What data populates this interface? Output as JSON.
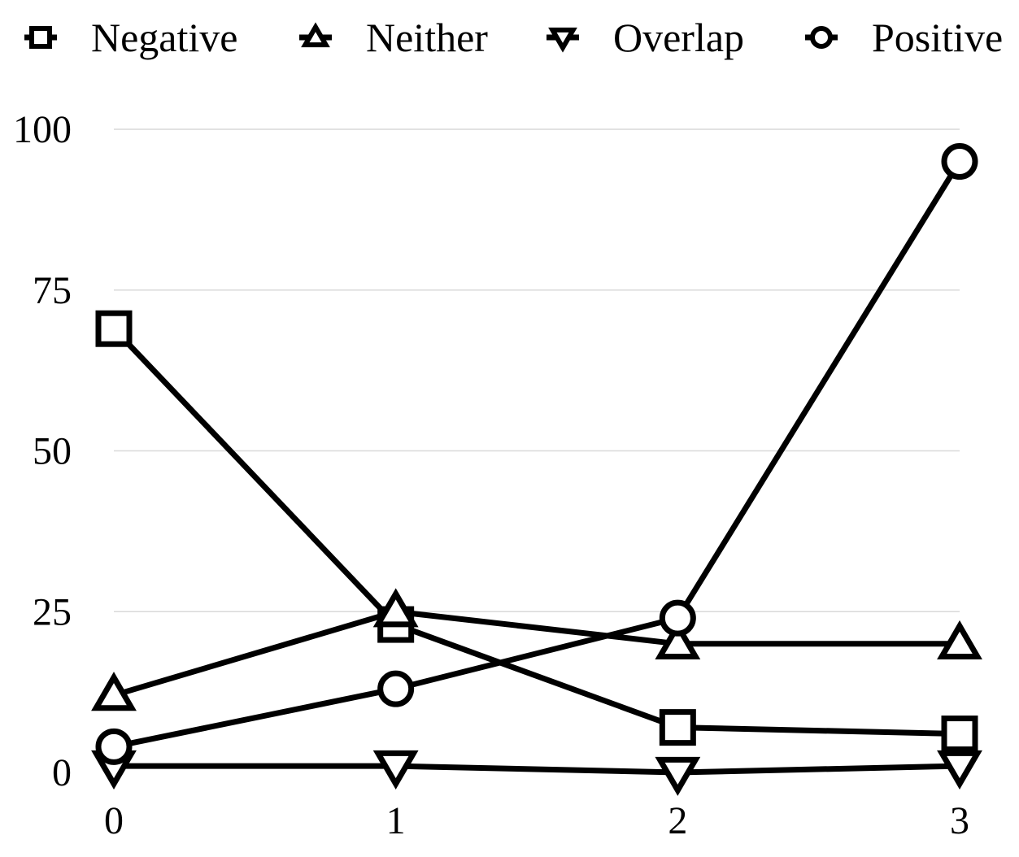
{
  "chart_data": {
    "type": "line",
    "title": "",
    "xlabel": "",
    "ylabel": "",
    "x": [
      0,
      1,
      2,
      3
    ],
    "xticks": [
      "0",
      "1",
      "2",
      "3"
    ],
    "yticks": [
      "0",
      "25",
      "50",
      "75",
      "100"
    ],
    "ylim": [
      0,
      100
    ],
    "grid": "horizontal",
    "legend_position": "top",
    "series": [
      {
        "name": "Negative",
        "marker": "square",
        "values": [
          69,
          23,
          7,
          6
        ]
      },
      {
        "name": "Neither",
        "marker": "triangle-up",
        "values": [
          12,
          25,
          20,
          20
        ]
      },
      {
        "name": "Overlap",
        "marker": "triangle-down",
        "values": [
          1,
          1,
          0,
          1
        ]
      },
      {
        "name": "Positive",
        "marker": "circle",
        "values": [
          4,
          13,
          24,
          95
        ]
      }
    ],
    "colors": {
      "line": "#000000",
      "marker_fill": "#ffffff",
      "grid": "#d9d9d9"
    }
  }
}
